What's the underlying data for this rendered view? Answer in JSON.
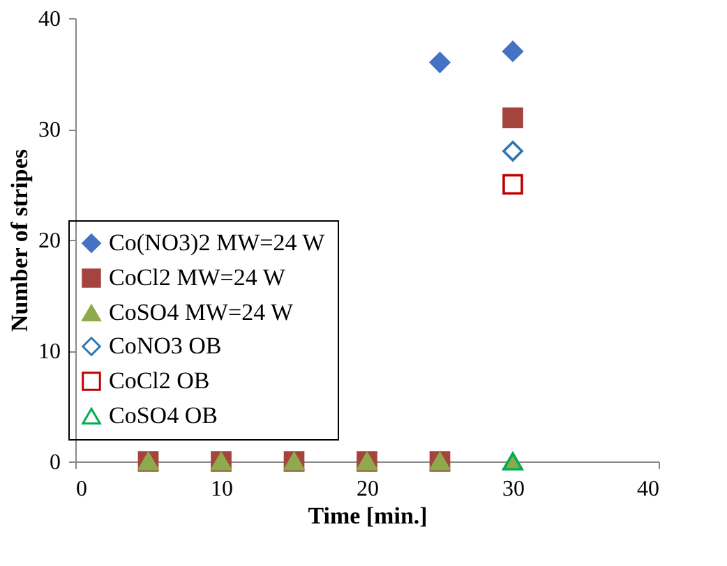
{
  "chart_data": {
    "type": "scatter",
    "xlabel": "Time [min.]",
    "ylabel": "Number of stripes",
    "xlim": [
      0,
      40
    ],
    "xticks": [
      0,
      10,
      20,
      30,
      40
    ],
    "ylim": [
      0,
      40
    ],
    "yticks": [
      0,
      10,
      20,
      30,
      40
    ],
    "grid": false,
    "legend": "left",
    "series": [
      {
        "name": "Co(NO3)2 MW=24 W",
        "color": "#4472c4",
        "marker": "diamond",
        "x": [
          25,
          30
        ],
        "values": [
          36,
          37
        ]
      },
      {
        "name": "CoCl2 MW=24 W",
        "color": "#a5443f",
        "marker": "square",
        "x": [
          5,
          10,
          15,
          20,
          25,
          30
        ],
        "values": [
          0,
          0,
          0,
          0,
          0,
          31
        ]
      },
      {
        "name": "CoSO4 MW=24 W",
        "color": "#8faa4c",
        "marker": "triangle",
        "x": [
          5,
          10,
          15,
          20,
          25,
          30
        ],
        "values": [
          0,
          0,
          0,
          0,
          0,
          0
        ]
      },
      {
        "name": "CoNO3 OB",
        "color": "#2e75b6",
        "marker": "diamond",
        "x": [
          30
        ],
        "values": [
          28
        ]
      },
      {
        "name": "CoCl2 OB",
        "color": "#c00000",
        "marker": "square",
        "x": [
          30
        ],
        "values": [
          25
        ]
      },
      {
        "name": "CoSO4 OB",
        "color": "#00b050",
        "marker": "triangle",
        "x": [
          30
        ],
        "values": [
          0
        ]
      }
    ]
  }
}
